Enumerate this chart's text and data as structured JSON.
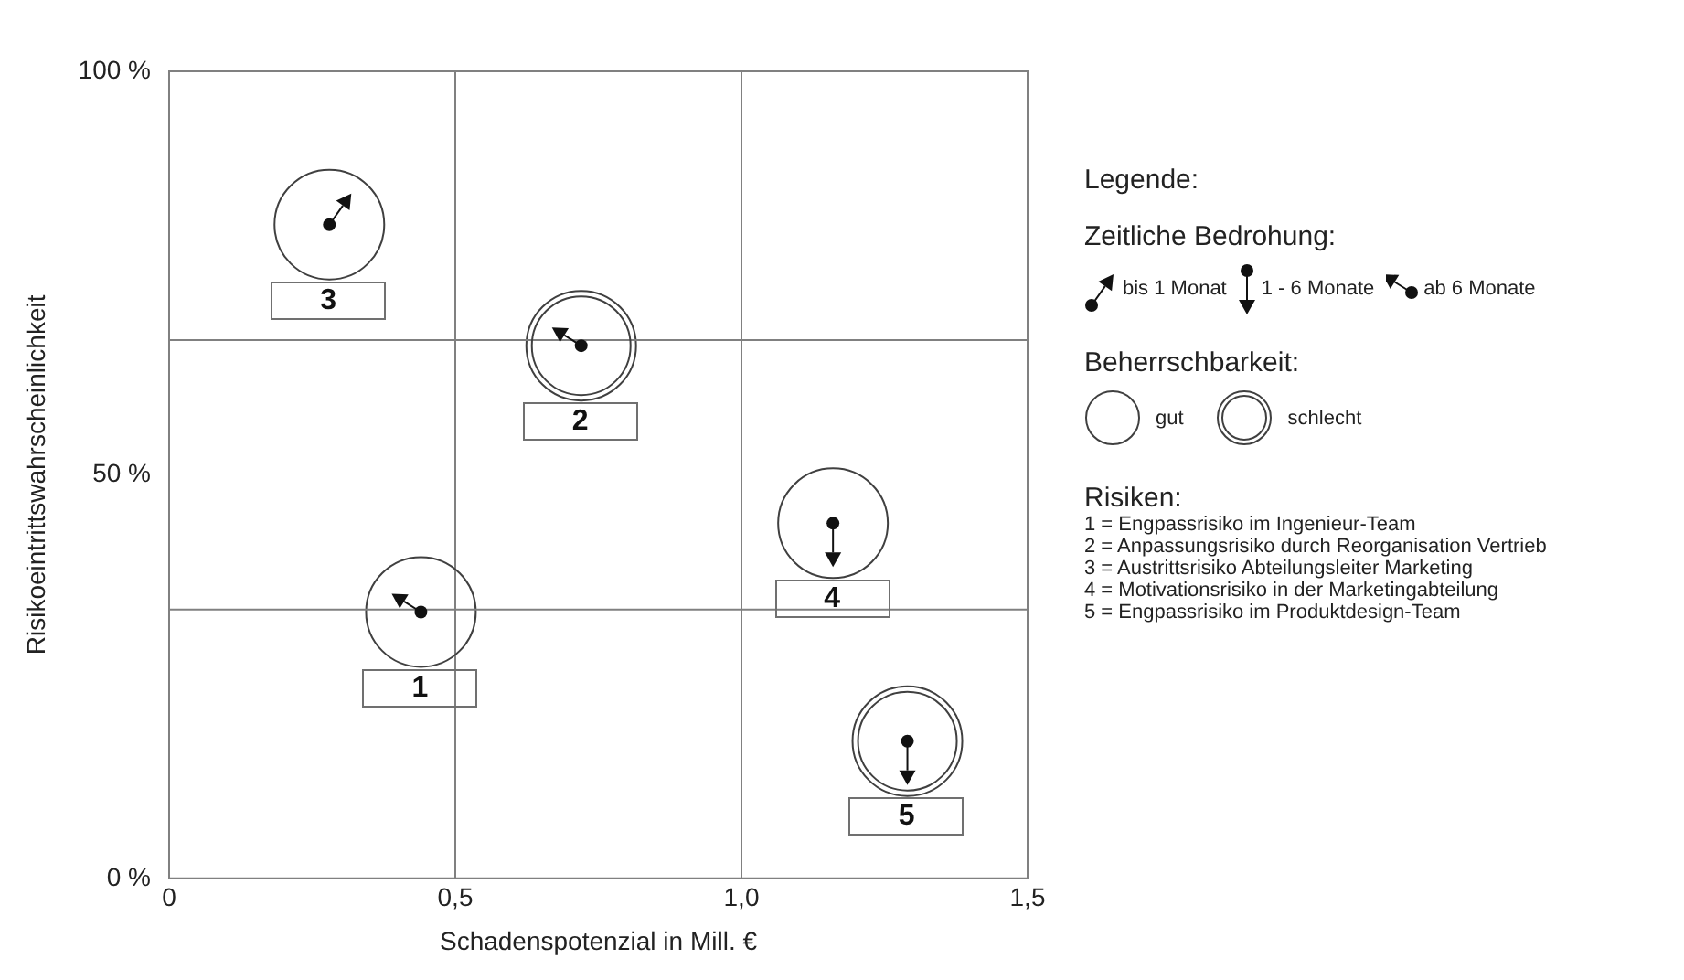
{
  "chart_data": {
    "type": "scatter",
    "xlabel": "Schadenspotenzial in Mill. €",
    "ylabel": "Risikoeintrittswahrscheinlichkeit",
    "legend_title": "Beherrschbarkeit:",
    "series": [
      {
        "name": "gut",
        "color": "#404040",
        "x": [
          0.44,
          0.28,
          1.16
        ],
        "values": [
          33,
          81,
          44
        ]
      },
      {
        "name": "schlecht",
        "color": "#404040",
        "x": [
          0.72,
          1.29
        ],
        "values": [
          66,
          17
        ]
      }
    ],
    "xlim": [
      0,
      1.5
    ],
    "xticks": [
      0,
      {
        "value": 0.5,
        "label": "0,5"
      },
      {
        "value": 1.0,
        "label": "1,0"
      },
      {
        "value": 1.5,
        "label": "1,5"
      }
    ],
    "ylim": [
      0,
      100
    ],
    "yticks": [
      {
        "value": 0,
        "label": "0 %"
      },
      {
        "value": 50,
        "label": "50 %"
      },
      {
        "value": 100,
        "label": "100 %"
      }
    ],
    "grid": "x",
    "ref_lines": [
      {
        "axis": "y",
        "value": 33.3,
        "label": null,
        "color": "#808080"
      },
      {
        "axis": "y",
        "value": 66.7,
        "label": null,
        "color": "#808080"
      }
    ],
    "marker": "circle",
    "legend": "right",
    "annotations": [
      "Legende:",
      "Zeitliche Bedrohung:",
      "bis 1 Monat",
      "1 - 6 Monate",
      "ab 6 Monate",
      "Risiken:",
      "1 = Engpassrisiko im Ingenieur-Team",
      "2 = Anpassungsrisiko durch Reorganisation Vertrieb",
      "3 = Austrittsrisiko Abteilungsleiter Marketing",
      "4 = Motivationsrisiko in der Marketingabteilung",
      "5 = Engpassrisiko im Produktdesign-Team",
      {
        "text": "1",
        "x": 0.44,
        "y": 33
      },
      {
        "text": "3",
        "x": 0.28,
        "y": 81
      },
      {
        "text": "4",
        "x": 1.16,
        "y": 44
      },
      {
        "text": "2",
        "x": 0.72,
        "y": 66
      },
      {
        "text": "5",
        "x": 1.29,
        "y": 17
      }
    ]
  }
}
